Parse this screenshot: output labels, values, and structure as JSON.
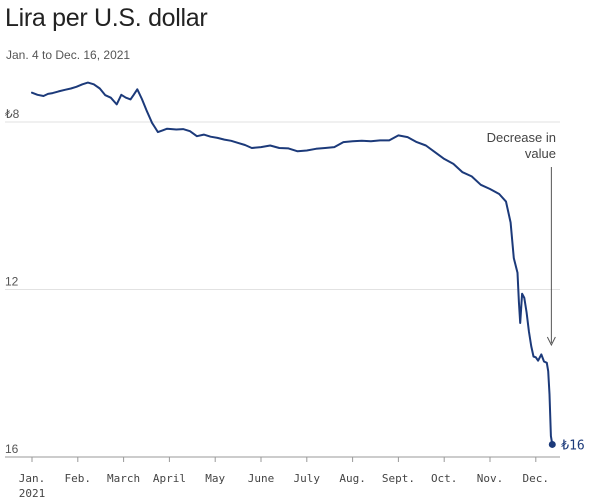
{
  "chart_data": {
    "type": "line",
    "title": "Lira per U.S. dollar",
    "subtitle": "Jan. 4 to Dec. 16, 2021",
    "xlabel": "",
    "ylabel": "",
    "ylim": [
      6.25,
      16
    ],
    "y_inverted": true,
    "y_ticks": [
      {
        "value": 8,
        "label": "₺8"
      },
      {
        "value": 12,
        "label": "12"
      },
      {
        "value": 16,
        "label": "16"
      }
    ],
    "x_ticks": [
      {
        "month": 0,
        "label": "Jan."
      },
      {
        "month": 1,
        "label": "Feb."
      },
      {
        "month": 2,
        "label": "March"
      },
      {
        "month": 3,
        "label": "April"
      },
      {
        "month": 4,
        "label": "May"
      },
      {
        "month": 5,
        "label": "June"
      },
      {
        "month": 6,
        "label": "July"
      },
      {
        "month": 7,
        "label": "Aug."
      },
      {
        "month": 8,
        "label": "Sept."
      },
      {
        "month": 9,
        "label": "Oct."
      },
      {
        "month": 10,
        "label": "Nov."
      },
      {
        "month": 11,
        "label": "Dec."
      }
    ],
    "x_year_label": "2021",
    "series": [
      {
        "name": "Lira per U.S. dollar",
        "color": "#1c3a7a",
        "x": [
          0.0,
          0.12,
          0.25,
          0.35,
          0.45,
          0.58,
          0.72,
          0.85,
          0.97,
          1.1,
          1.22,
          1.35,
          1.48,
          1.6,
          1.72,
          1.85,
          1.95,
          2.05,
          2.15,
          2.22,
          2.3,
          2.4,
          2.5,
          2.58,
          2.62,
          2.68,
          2.75,
          2.85,
          2.95,
          3.05,
          3.15,
          3.3,
          3.45,
          3.6,
          3.75,
          3.9,
          4.05,
          4.2,
          4.35,
          4.5,
          4.65,
          4.8,
          5.0,
          5.2,
          5.4,
          5.6,
          5.8,
          6.0,
          6.2,
          6.4,
          6.6,
          6.8,
          7.0,
          7.2,
          7.4,
          7.6,
          7.8,
          8.0,
          8.2,
          8.4,
          8.6,
          8.8,
          9.0,
          9.2,
          9.4,
          9.6,
          9.8,
          10.0,
          10.2,
          10.35,
          10.45,
          10.52,
          10.6,
          10.63,
          10.66,
          10.7,
          10.75,
          10.8,
          10.85,
          10.9,
          10.95,
          11.0,
          11.05,
          11.12,
          11.18,
          11.24,
          11.27,
          11.3,
          11.33,
          11.36
        ],
        "values": [
          7.3,
          7.35,
          7.38,
          7.33,
          7.31,
          7.27,
          7.23,
          7.2,
          7.16,
          7.1,
          7.06,
          7.1,
          7.2,
          7.36,
          7.42,
          7.58,
          7.35,
          7.42,
          7.46,
          7.35,
          7.22,
          7.45,
          7.72,
          7.92,
          8.02,
          8.12,
          8.24,
          8.2,
          8.16,
          8.17,
          8.18,
          8.17,
          8.22,
          8.34,
          8.3,
          8.35,
          8.38,
          8.42,
          8.45,
          8.5,
          8.55,
          8.62,
          8.6,
          8.56,
          8.62,
          8.63,
          8.7,
          8.68,
          8.64,
          8.62,
          8.6,
          8.48,
          8.46,
          8.45,
          8.46,
          8.44,
          8.44,
          8.32,
          8.36,
          8.48,
          8.56,
          8.72,
          8.88,
          9.0,
          9.2,
          9.3,
          9.5,
          9.6,
          9.72,
          9.9,
          10.4,
          11.25,
          11.6,
          12.3,
          12.8,
          12.1,
          12.2,
          12.55,
          13.0,
          13.35,
          13.6,
          13.62,
          13.7,
          13.55,
          13.72,
          13.75,
          13.95,
          14.5,
          15.5,
          15.7
        ]
      }
    ],
    "end_point": {
      "month": 11.36,
      "value": 15.7,
      "label": "₺16"
    },
    "annotation": {
      "lines": [
        "Decrease in",
        "value"
      ],
      "month": 11.34
    }
  }
}
